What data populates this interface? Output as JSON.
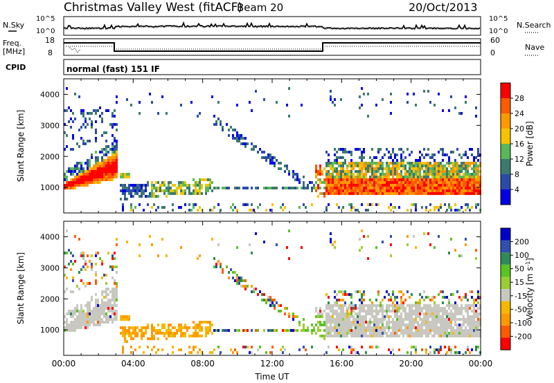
{
  "header": {
    "station": "Christmas Valley West (fitACF)",
    "beam": "Beam 20",
    "date": "20/Oct/2013"
  },
  "noise_panel": {
    "left_label": "N.Sky",
    "right_label": "N.Search",
    "left_ticks": [
      "10^5",
      "10^0"
    ],
    "right_ticks": [
      "10^5",
      "10^0"
    ]
  },
  "freq_panel": {
    "left_label_1": "Freq.",
    "left_label_2": "[MHz]",
    "right_label": "Nave",
    "left_ticks": [
      "18",
      "8"
    ],
    "right_ticks": [
      "60",
      "0"
    ],
    "cpid_label": "CPID",
    "cpid_text": "normal (fast) 151 IF"
  },
  "colors": {
    "power_scale": [
      "#0000e6",
      "#2b4ba8",
      "#3d7a6e",
      "#5ab85a",
      "#f5c400",
      "#ff9900",
      "#ff5a00",
      "#ff0000"
    ],
    "velocity_scale": [
      "#ff0000",
      "#ff5a00",
      "#ff9900",
      "#f5b800",
      "#c8c8c0",
      "#9acd32",
      "#58c322",
      "#2e8b57",
      "#3050b0",
      "#0000cc"
    ],
    "ground_scatter": "#c8c8c0"
  },
  "chart_data": [
    {
      "type": "heatmap",
      "title": "",
      "xlabel": "",
      "ylabel": "Slant Range [km]",
      "xlim": [
        "00:00",
        "24:00"
      ],
      "ylim": [
        180,
        4500
      ],
      "y_ticks": [
        "1000",
        "2000",
        "3000",
        "4000"
      ],
      "colorbar": {
        "label": "Power [dB]",
        "ticks": [
          "4",
          "8",
          "12",
          "16",
          "20",
          "24",
          "28"
        ],
        "range": [
          0,
          32
        ]
      },
      "features": [
        {
          "hours": [
            0.0,
            3.0
          ],
          "range_km": [
            900,
            2100
          ],
          "power_db": [
            20,
            30
          ]
        },
        {
          "hours": [
            3.3,
            8.5
          ],
          "range_km": [
            700,
            1300
          ],
          "power_db": [
            8,
            24
          ]
        },
        {
          "hours": [
            8.5,
            14.5
          ],
          "range_km": [
            1000,
            1100
          ],
          "power_db": [
            4,
            16
          ]
        },
        {
          "hours": [
            14.8,
            24.0
          ],
          "range_km": [
            800,
            2000
          ],
          "power_db": [
            12,
            32
          ]
        }
      ]
    },
    {
      "type": "heatmap",
      "title": "",
      "xlabel": "Time UT",
      "ylabel": "Slant Range [km]",
      "xlim": [
        "00:00",
        "24:00"
      ],
      "ylim": [
        180,
        4500
      ],
      "x_ticks": [
        "00:00",
        "04:00",
        "08:00",
        "12:00",
        "16:00",
        "20:00",
        "00:00"
      ],
      "y_ticks": [
        "1000",
        "2000",
        "3000",
        "4000"
      ],
      "colorbar": {
        "label": "Velocity [m s^-1]",
        "ticks": [
          "200",
          "100",
          "50",
          "15",
          "-15",
          "-50",
          "-100",
          "-200"
        ],
        "range": [
          -250,
          250
        ]
      },
      "features": [
        {
          "hours": [
            0.0,
            3.0
          ],
          "range_km": [
            900,
            2400
          ],
          "velocity_class": "ground scatter"
        },
        {
          "hours": [
            14.8,
            24.0
          ],
          "range_km": [
            800,
            1900
          ],
          "velocity_class": "ground scatter"
        },
        {
          "hours": [
            13.5,
            15.0
          ],
          "range_km": [
            750,
            1800
          ],
          "velocity_ms": [
            15,
            100
          ]
        },
        {
          "hours": [
            3.3,
            8.5
          ],
          "range_km": [
            700,
            1300
          ],
          "velocity_ms": [
            -100,
            -15
          ]
        }
      ]
    }
  ]
}
